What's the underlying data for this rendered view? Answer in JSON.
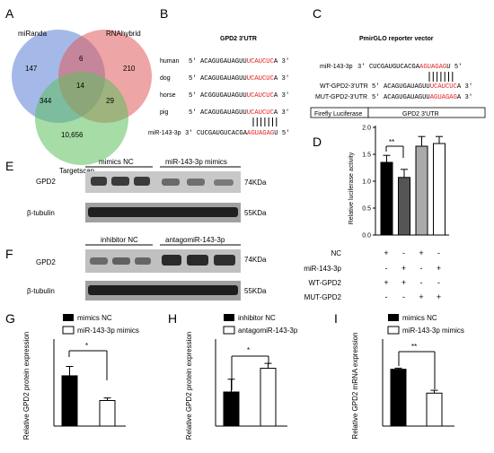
{
  "figure": {
    "panels": {
      "A": {
        "label": "A",
        "venn": {
          "sets": [
            {
              "name": "miRanda",
              "color": "#5b7fd6"
            },
            {
              "name": "RNAhybrid",
              "color": "#e05b5b"
            },
            {
              "name": "Targetscan",
              "color": "#5cc05c"
            }
          ],
          "regions": {
            "miRanda_only": "147",
            "RNAhybrid_only": "210",
            "Targetscan_only": "10,656",
            "miRanda_RNAhybrid": "6",
            "miRanda_Targetscan": "344",
            "RNAhybrid_Targetscan": "29",
            "all_three": "14"
          }
        }
      },
      "B": {
        "label": "B",
        "title": "GPD2  3'UTR",
        "rows": [
          {
            "species": "human",
            "prefix": "5'  ACAGUGAUAGUU",
            "site": "UCAUCUC",
            "suffix": "A  3'"
          },
          {
            "species": "dog",
            "prefix": "5'  ACAGUGAUAGUU",
            "site": "UCAUCUC",
            "suffix": "A  3'"
          },
          {
            "species": "horse",
            "prefix": "5'  ACGGUGAUAGUU",
            "site": "UCAUCUC",
            "suffix": "A  3'"
          },
          {
            "species": "pig",
            "prefix": "5'  ACAGUGAUAGUU",
            "site": "UCAUCUC",
            "suffix": "A  3'"
          }
        ],
        "mirna": {
          "name": "miR-143-3p",
          "prefix": "3'  CUCGAUGUCACGA",
          "seed": "AGUAGAG",
          "suffix": "U  5'"
        }
      },
      "C": {
        "label": "C",
        "title": "PmirGLO reporter vector",
        "mirna": {
          "name": "miR-143-3p",
          "prefix": "3'  CUCGAUGUCACGA",
          "seed": "AGUAGAG",
          "suffix": "U  5'"
        },
        "wt": {
          "name": "WT-GPD2-3'UTR",
          "prefix": "5'  ACAGUGAUAGUU",
          "site": "UCAUCUC",
          "suffix": "A  3'"
        },
        "mut": {
          "name": "MUT-GPD2-3'UTR",
          "prefix": "5'  ACAGUGAUAGUU",
          "site": "AGUAGAG",
          "suffix": "A  3'"
        },
        "vector_parts": [
          "Firefly Luciferase",
          "GPD2  3'UTR"
        ]
      },
      "D": {
        "label": "D",
        "ylabel": "Relative luciferase activity",
        "significance": "**",
        "condition_labels": [
          "NC",
          "miR-143-3p",
          "WT-GPD2",
          "MUT-GPD2"
        ],
        "condition_signs": [
          [
            "+",
            "-",
            "+",
            "-"
          ],
          [
            "-",
            "+",
            "-",
            "+"
          ],
          [
            "+",
            "+",
            "-",
            "-"
          ],
          [
            "-",
            "-",
            "+",
            "+"
          ]
        ]
      },
      "E": {
        "label": "E",
        "groups": [
          "mimics NC",
          "miR-143-3p mimics"
        ],
        "rows": [
          {
            "protein": "GPD2",
            "size": "74KDa"
          },
          {
            "protein": "β-tubulin",
            "size": "55KDa"
          }
        ]
      },
      "F": {
        "label": "F",
        "groups": [
          "inhibitor NC",
          "antagomiR-143-3p"
        ],
        "rows": [
          {
            "protein": "GPD2",
            "size": "74KDa"
          },
          {
            "protein": "β-tubulin",
            "size": "55KDa"
          }
        ]
      },
      "G": {
        "label": "G",
        "legend": [
          "mimics NC",
          "miR-143-3p mimics"
        ],
        "ylabel": "Relative GPD2 protein expression",
        "significance": "*"
      },
      "H": {
        "label": "H",
        "legend": [
          "inhibitor NC",
          "antagomiR-143-3p"
        ],
        "ylabel": "Relative GPD2 protein expression",
        "significance": "*"
      },
      "I": {
        "label": "I",
        "legend": [
          "mimics NC",
          "miR-143-3p mimics"
        ],
        "ylabel": "Relative GPD2 mRNA expression",
        "significance": "**"
      }
    }
  },
  "chart_data": [
    {
      "panel": "D",
      "type": "bar",
      "categories": [
        "NC + WT-GPD2",
        "miR-143-3p + WT-GPD2",
        "NC + MUT-GPD2",
        "miR-143-3p + MUT-GPD2"
      ],
      "values": [
        1.35,
        1.07,
        1.65,
        1.7
      ],
      "errors": [
        0.13,
        0.15,
        0.18,
        0.13
      ],
      "fills": [
        "#000000",
        "#555555",
        "#aaaaaa",
        "#ffffff"
      ],
      "ylabel": "Relative luciferase activity",
      "ylim": [
        0,
        2.0
      ],
      "yticks": [
        "0.0",
        "0.5",
        "1.0",
        "1.5",
        "2.0"
      ]
    },
    {
      "panel": "G",
      "type": "bar",
      "categories": [
        "mimics NC",
        "miR-143-3p mimics"
      ],
      "values": [
        0.59,
        0.3
      ],
      "errors": [
        0.11,
        0.03
      ],
      "fills": [
        "#000000",
        "#ffffff"
      ],
      "ylabel": "Relative GPD2 protein expression",
      "ylim": [
        0,
        1.0
      ]
    },
    {
      "panel": "H",
      "type": "bar",
      "categories": [
        "inhibitor NC",
        "antagomiR-143-3p"
      ],
      "values": [
        0.56,
        0.95
      ],
      "errors": [
        0.21,
        0.08
      ],
      "fills": [
        "#000000",
        "#ffffff"
      ],
      "ylabel": "Relative GPD2 protein expression",
      "ylim": [
        0,
        1.4
      ]
    },
    {
      "panel": "I",
      "type": "bar",
      "categories": [
        "mimics NC",
        "miR-143-3p mimics"
      ],
      "values": [
        1.0,
        0.58
      ],
      "errors": [
        0.02,
        0.05
      ],
      "fills": [
        "#000000",
        "#ffffff"
      ],
      "ylabel": "Relative GPD2 mRNA expression",
      "ylim": [
        0,
        1.5
      ]
    }
  ]
}
